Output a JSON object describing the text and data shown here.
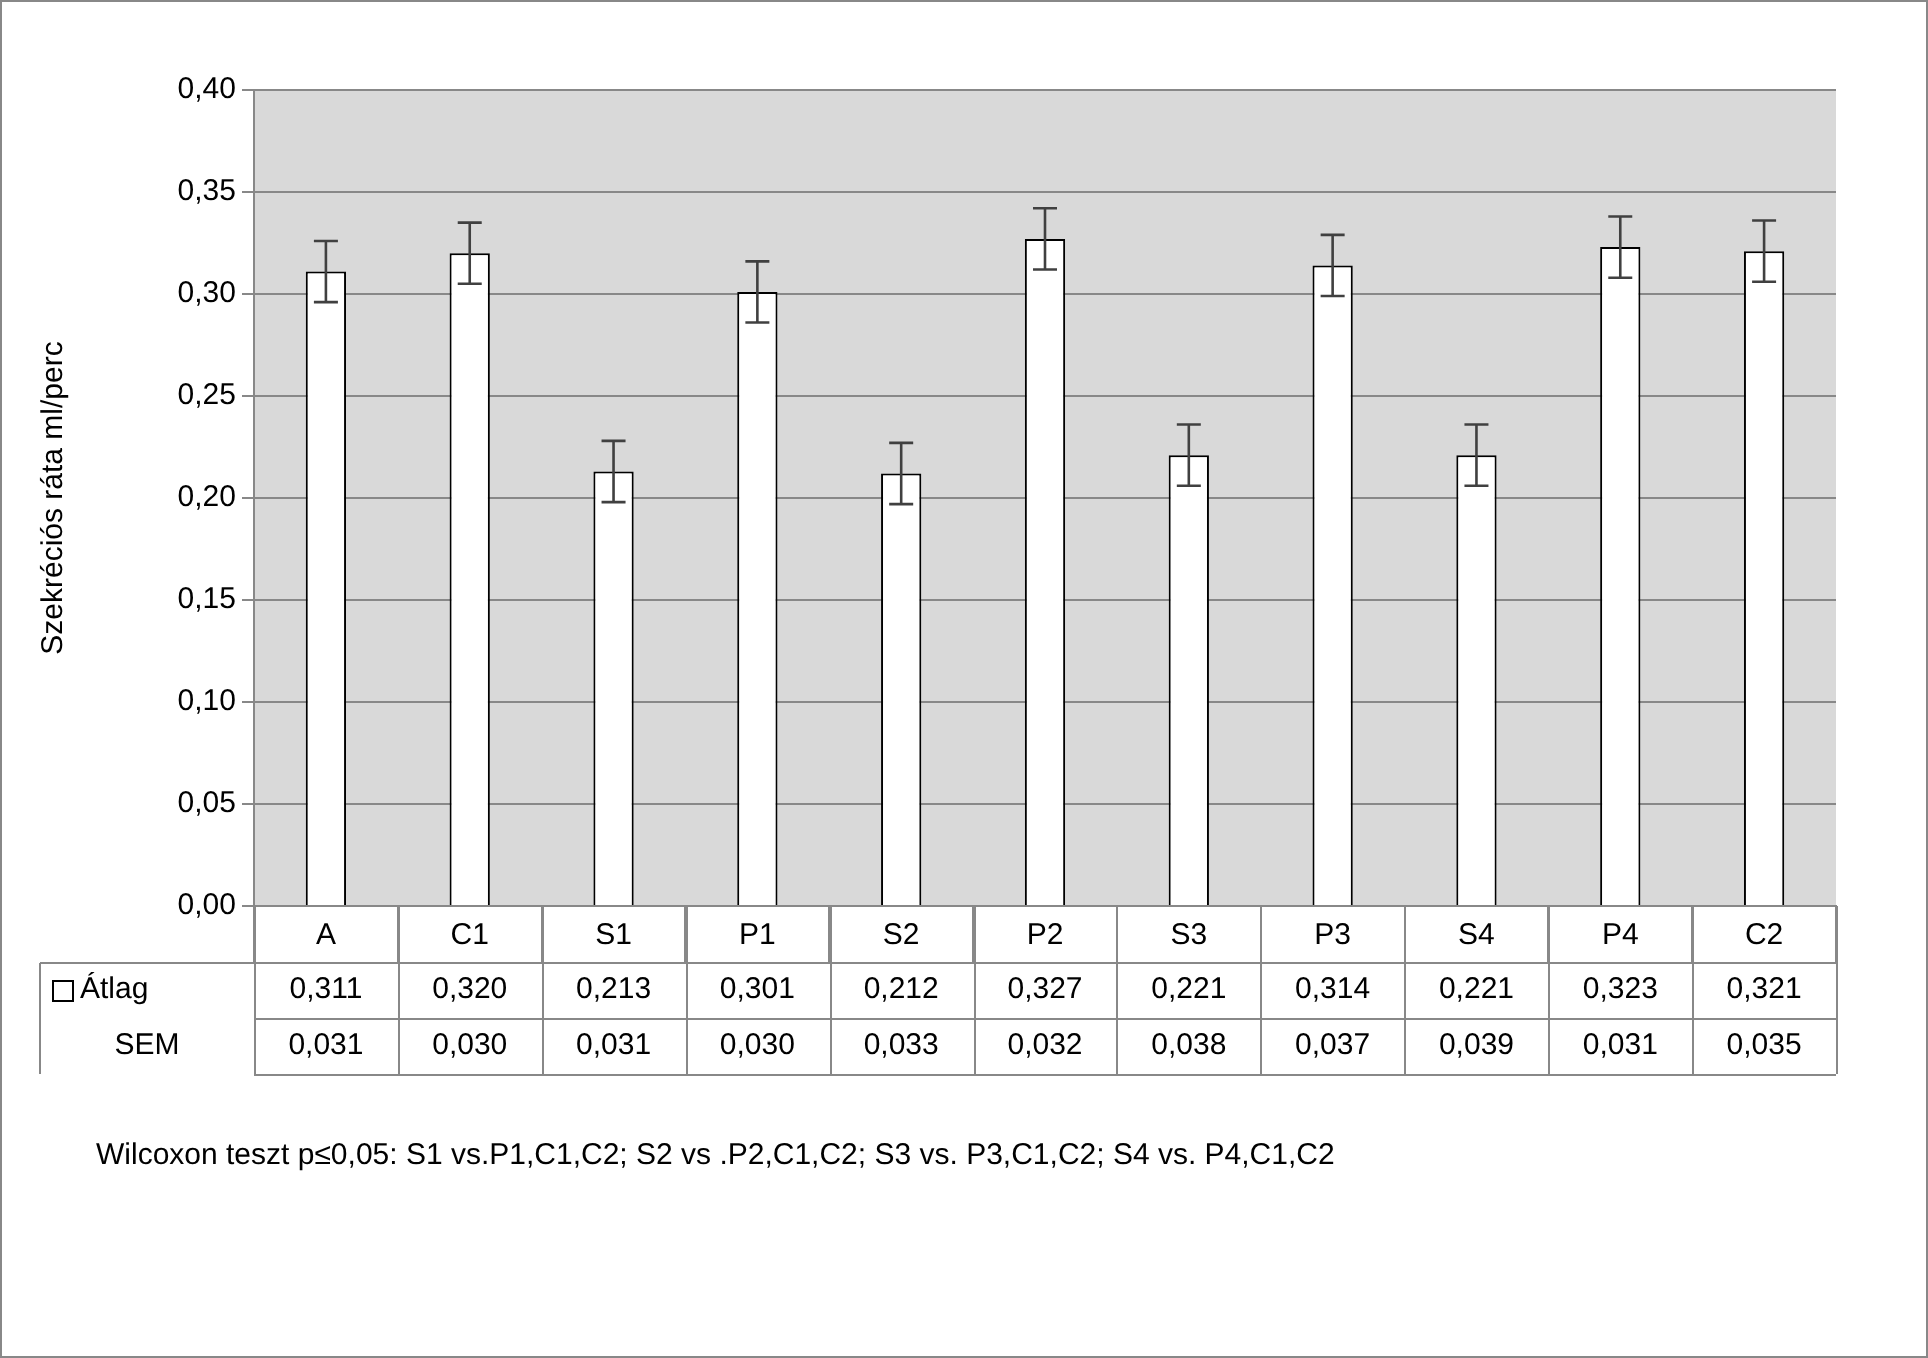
{
  "chart_data": {
    "type": "bar",
    "ylabel": "Szekréciós ráta ml/perc",
    "categories": [
      "A",
      "C1",
      "S1",
      "P1",
      "S2",
      "P2",
      "S3",
      "P3",
      "S4",
      "P4",
      "C2"
    ],
    "series": [
      {
        "name": "Átlag",
        "color": "#ffffff",
        "values": [
          0.311,
          0.32,
          0.213,
          0.301,
          0.212,
          0.327,
          0.221,
          0.314,
          0.221,
          0.323,
          0.321
        ],
        "value_labels": [
          "0,311",
          "0,320",
          "0,213",
          "0,301",
          "0,212",
          "0,327",
          "0,221",
          "0,314",
          "0,221",
          "0,323",
          "0,321"
        ],
        "errors": [
          0.015,
          0.015,
          0.015,
          0.015,
          0.015,
          0.015,
          0.015,
          0.015,
          0.015,
          0.015,
          0.015
        ]
      }
    ],
    "ylim": [
      0,
      0.4
    ],
    "yticks": [
      {
        "value": 0,
        "label": "0,00"
      },
      {
        "value": 0.05,
        "label": "0,05"
      },
      {
        "value": 0.1,
        "label": "0,10"
      },
      {
        "value": 0.15,
        "label": "0,15"
      },
      {
        "value": 0.2,
        "label": "0,20"
      },
      {
        "value": 0.25,
        "label": "0,25"
      },
      {
        "value": 0.3,
        "label": "0,30"
      },
      {
        "value": 0.35,
        "label": "0,35"
      },
      {
        "value": 0.4,
        "label": "0,40"
      }
    ],
    "grid": "y",
    "legend": "bottom",
    "annotations": [
      "Wilcoxon teszt p≤0,05: S1 vs.P1,C1,C2; S2 vs .P2,C1,C2; S3 vs. P3,C1,C2; S4 vs. P4,C1,C2",
      "SEM",
      "0,031",
      "0,030",
      "0,031",
      "0,030",
      "0,033",
      "0,032",
      "0,038",
      "0,037",
      "0,039",
      "0,031",
      "0,035"
    ]
  }
}
